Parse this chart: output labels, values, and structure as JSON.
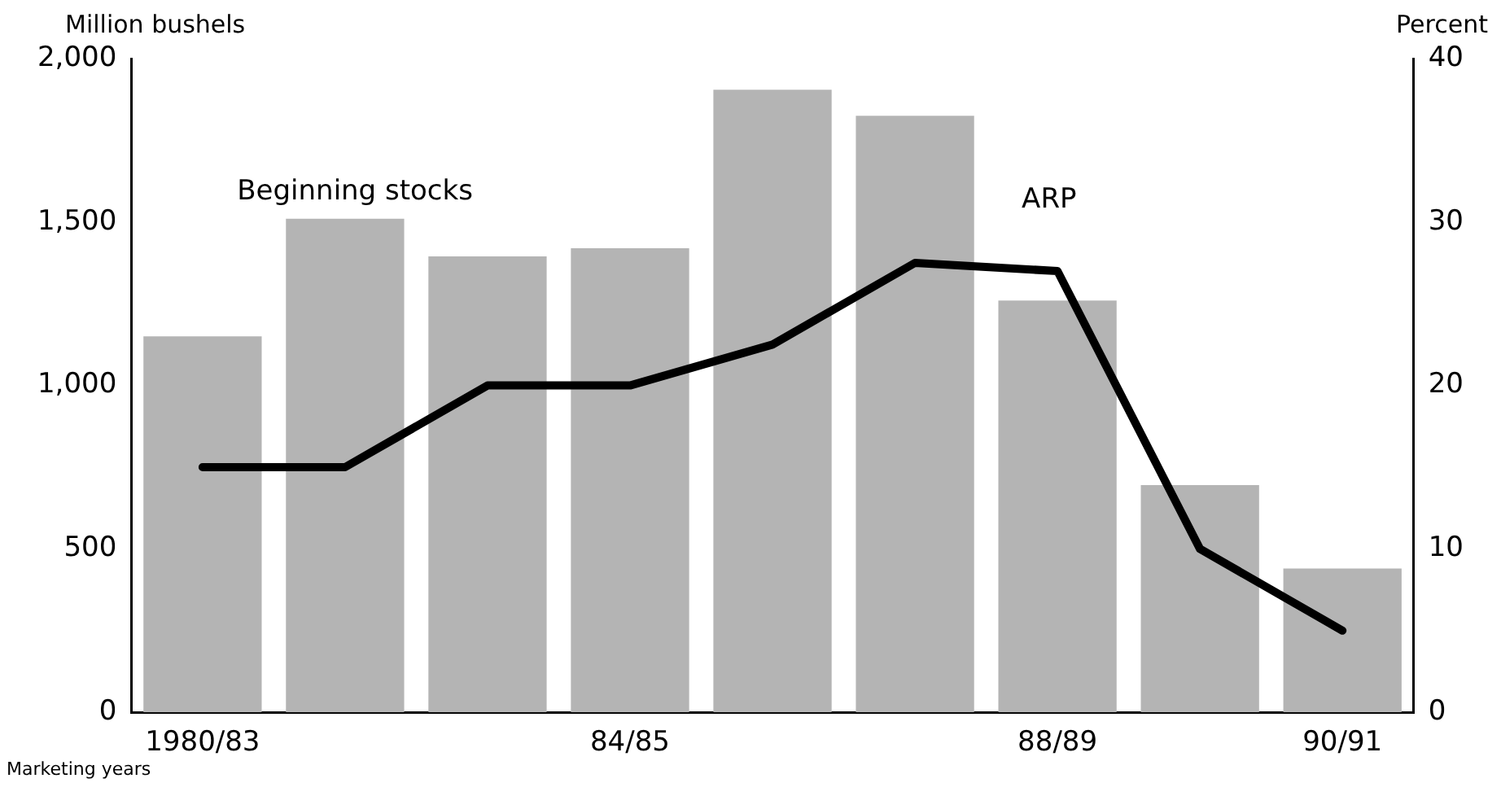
{
  "chart_data": {
    "type": "bar",
    "ylabel": "Million bushels",
    "y2label": "Percent",
    "xlabel": "Marketing years",
    "categories": [
      "1980/83",
      null,
      null,
      "84/85",
      null,
      null,
      "88/89",
      null,
      "90/91"
    ],
    "series": [
      {
        "name": "Beginning stocks",
        "color": "#b4b4b4",
        "values": [
          1150,
          1510,
          1395,
          1420,
          1905,
          1825,
          1260,
          695,
          440
        ]
      },
      {
        "name": "ARP",
        "type": "line",
        "axis": "y2",
        "color": "#000000",
        "values": [
          15,
          15,
          20,
          20,
          22.5,
          27.5,
          27,
          10,
          5
        ]
      }
    ],
    "ylim": [
      0,
      2000
    ],
    "yticks": [
      0,
      {
        "value": 500,
        "label": "500"
      },
      {
        "value": 1000,
        "label": "1,000"
      },
      {
        "value": 1500,
        "label": "1,500"
      },
      {
        "value": 2000,
        "label": "2,000"
      }
    ],
    "y2lim": [
      0,
      40
    ],
    "y2ticks": [
      0,
      10,
      20,
      30,
      40
    ],
    "grid": false,
    "legend": false,
    "marker": "none",
    "line_style": "solid"
  }
}
